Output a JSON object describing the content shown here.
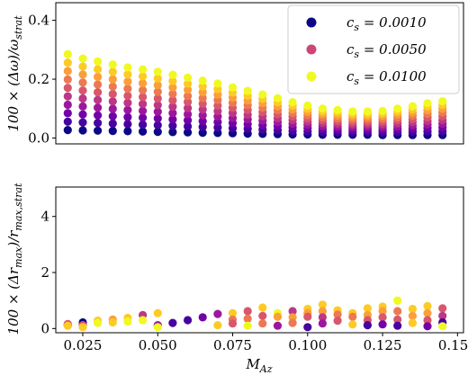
{
  "chart_data": [
    {
      "type": "scatter",
      "ylabel": "100 × (Δω)/ω_strat",
      "ylim": [
        -0.02,
        0.46
      ],
      "yticks": [
        0.0,
        0.2,
        0.4
      ],
      "ytick_labels": [
        "0.0",
        "0.2",
        "0.4"
      ],
      "xlim": [
        0.016,
        0.152
      ],
      "legend": {
        "placement": "top-right",
        "entries": [
          {
            "label": "c_s = 0.0010",
            "color": "#0d0887"
          },
          {
            "label": "c_s = 0.0050",
            "color": "#cc4778"
          },
          {
            "label": "c_s = 0.0100",
            "color": "#f0f921"
          }
        ]
      },
      "x": [
        0.02,
        0.025,
        0.03,
        0.035,
        0.04,
        0.045,
        0.05,
        0.055,
        0.06,
        0.065,
        0.07,
        0.075,
        0.08,
        0.085,
        0.09,
        0.095,
        0.1,
        0.105,
        0.11,
        0.115,
        0.12,
        0.125,
        0.13,
        0.135,
        0.14,
        0.145
      ],
      "series": [
        {
          "cs": 0.001,
          "values": [
            0.027,
            0.026,
            0.025,
            0.024,
            0.023,
            0.022,
            0.021,
            0.02,
            0.019,
            0.018,
            0.017,
            0.016,
            0.015,
            0.014,
            0.013,
            0.012,
            0.012,
            0.011,
            0.011,
            0.011,
            0.011,
            0.01,
            0.01,
            0.01,
            0.01,
            0.01
          ]
        },
        {
          "cs": 0.01,
          "values": [
            0.285,
            0.27,
            0.26,
            0.25,
            0.24,
            0.233,
            0.225,
            0.215,
            0.205,
            0.195,
            0.185,
            0.172,
            0.16,
            0.148,
            0.135,
            0.122,
            0.11,
            0.1,
            0.095,
            0.09,
            0.09,
            0.092,
            0.1,
            0.108,
            0.118,
            0.125
          ]
        }
      ],
      "points_per_column": 10
    },
    {
      "type": "scatter",
      "xlabel": "M_Az",
      "ylabel": "100 × (Δr_max)/r_max,strat",
      "ylim": [
        -0.15,
        5.05
      ],
      "yticks": [
        0,
        2,
        4
      ],
      "ytick_labels": [
        "0",
        "2",
        "4"
      ],
      "xlim": [
        0.016,
        0.152
      ],
      "xticks": [
        0.025,
        0.05,
        0.075,
        0.1,
        0.125,
        0.15
      ],
      "xtick_labels": [
        "0.025",
        "0.050",
        "0.075",
        "0.100",
        "0.125",
        "0.150"
      ],
      "points": [
        {
          "x": 0.02,
          "y": 0.12,
          "c": 0.1
        },
        {
          "x": 0.02,
          "y": 0.16,
          "c": 0.5
        },
        {
          "x": 0.02,
          "y": 0.1,
          "c": 0.9
        },
        {
          "x": 0.025,
          "y": 0.22,
          "c": 0.05
        },
        {
          "x": 0.025,
          "y": 0.12,
          "c": 0.6
        },
        {
          "x": 0.025,
          "y": 0.05,
          "c": 0.9
        },
        {
          "x": 0.03,
          "y": 0.28,
          "c": 0.9
        },
        {
          "x": 0.03,
          "y": 0.2,
          "c": 0.95
        },
        {
          "x": 0.035,
          "y": 0.32,
          "c": 0.8
        },
        {
          "x": 0.035,
          "y": 0.22,
          "c": 0.92
        },
        {
          "x": 0.04,
          "y": 0.38,
          "c": 0.85
        },
        {
          "x": 0.04,
          "y": 0.25,
          "c": 0.95
        },
        {
          "x": 0.045,
          "y": 0.48,
          "c": 0.4
        },
        {
          "x": 0.045,
          "y": 0.3,
          "c": 0.95
        },
        {
          "x": 0.05,
          "y": 0.55,
          "c": 0.9
        },
        {
          "x": 0.05,
          "y": 0.12,
          "c": 0.3
        },
        {
          "x": 0.05,
          "y": 0.05,
          "c": 0.95
        },
        {
          "x": 0.055,
          "y": 0.2,
          "c": 0.1
        },
        {
          "x": 0.06,
          "y": 0.3,
          "c": 0.15
        },
        {
          "x": 0.065,
          "y": 0.4,
          "c": 0.2
        },
        {
          "x": 0.07,
          "y": 0.52,
          "c": 0.35
        },
        {
          "x": 0.07,
          "y": 0.12,
          "c": 0.9
        },
        {
          "x": 0.075,
          "y": 0.55,
          "c": 0.85
        },
        {
          "x": 0.075,
          "y": 0.32,
          "c": 0.7
        },
        {
          "x": 0.075,
          "y": 0.18,
          "c": 0.6
        },
        {
          "x": 0.08,
          "y": 0.62,
          "c": 0.55
        },
        {
          "x": 0.08,
          "y": 0.35,
          "c": 0.65
        },
        {
          "x": 0.08,
          "y": 0.1,
          "c": 0.95
        },
        {
          "x": 0.085,
          "y": 0.75,
          "c": 0.85
        },
        {
          "x": 0.085,
          "y": 0.45,
          "c": 0.6
        },
        {
          "x": 0.085,
          "y": 0.18,
          "c": 0.7
        },
        {
          "x": 0.09,
          "y": 0.55,
          "c": 0.95
        },
        {
          "x": 0.09,
          "y": 0.42,
          "c": 0.75
        },
        {
          "x": 0.09,
          "y": 0.1,
          "c": 0.35
        },
        {
          "x": 0.095,
          "y": 0.62,
          "c": 0.45
        },
        {
          "x": 0.095,
          "y": 0.4,
          "c": 0.8
        },
        {
          "x": 0.095,
          "y": 0.2,
          "c": 0.7
        },
        {
          "x": 0.1,
          "y": 0.7,
          "c": 0.9
        },
        {
          "x": 0.1,
          "y": 0.55,
          "c": 0.8
        },
        {
          "x": 0.1,
          "y": 0.42,
          "c": 0.6
        },
        {
          "x": 0.1,
          "y": 0.05,
          "c": 0.1
        },
        {
          "x": 0.105,
          "y": 0.85,
          "c": 0.9
        },
        {
          "x": 0.105,
          "y": 0.62,
          "c": 0.75
        },
        {
          "x": 0.105,
          "y": 0.4,
          "c": 0.45
        },
        {
          "x": 0.105,
          "y": 0.18,
          "c": 0.3
        },
        {
          "x": 0.11,
          "y": 0.65,
          "c": 0.85
        },
        {
          "x": 0.11,
          "y": 0.5,
          "c": 0.65
        },
        {
          "x": 0.11,
          "y": 0.28,
          "c": 0.6
        },
        {
          "x": 0.115,
          "y": 0.55,
          "c": 0.9
        },
        {
          "x": 0.115,
          "y": 0.42,
          "c": 0.7
        },
        {
          "x": 0.115,
          "y": 0.15,
          "c": 0.9
        },
        {
          "x": 0.12,
          "y": 0.72,
          "c": 0.9
        },
        {
          "x": 0.12,
          "y": 0.48,
          "c": 0.8
        },
        {
          "x": 0.12,
          "y": 0.3,
          "c": 0.5
        },
        {
          "x": 0.12,
          "y": 0.12,
          "c": 0.15
        },
        {
          "x": 0.125,
          "y": 0.78,
          "c": 0.9
        },
        {
          "x": 0.125,
          "y": 0.62,
          "c": 0.75
        },
        {
          "x": 0.125,
          "y": 0.4,
          "c": 0.55
        },
        {
          "x": 0.125,
          "y": 0.15,
          "c": 0.25
        },
        {
          "x": 0.13,
          "y": 1.0,
          "c": 0.95
        },
        {
          "x": 0.13,
          "y": 0.62,
          "c": 0.7
        },
        {
          "x": 0.13,
          "y": 0.32,
          "c": 0.5
        },
        {
          "x": 0.13,
          "y": 0.1,
          "c": 0.1
        },
        {
          "x": 0.135,
          "y": 0.7,
          "c": 0.85
        },
        {
          "x": 0.135,
          "y": 0.45,
          "c": 0.75
        },
        {
          "x": 0.135,
          "y": 0.2,
          "c": 0.9
        },
        {
          "x": 0.14,
          "y": 0.8,
          "c": 0.9
        },
        {
          "x": 0.14,
          "y": 0.55,
          "c": 0.8
        },
        {
          "x": 0.14,
          "y": 0.3,
          "c": 0.6
        },
        {
          "x": 0.14,
          "y": 0.08,
          "c": 0.2
        },
        {
          "x": 0.145,
          "y": 0.72,
          "c": 0.6
        },
        {
          "x": 0.145,
          "y": 0.45,
          "c": 0.45
        },
        {
          "x": 0.145,
          "y": 0.22,
          "c": 0.1
        },
        {
          "x": 0.145,
          "y": 0.08,
          "c": 0.95
        }
      ]
    }
  ]
}
